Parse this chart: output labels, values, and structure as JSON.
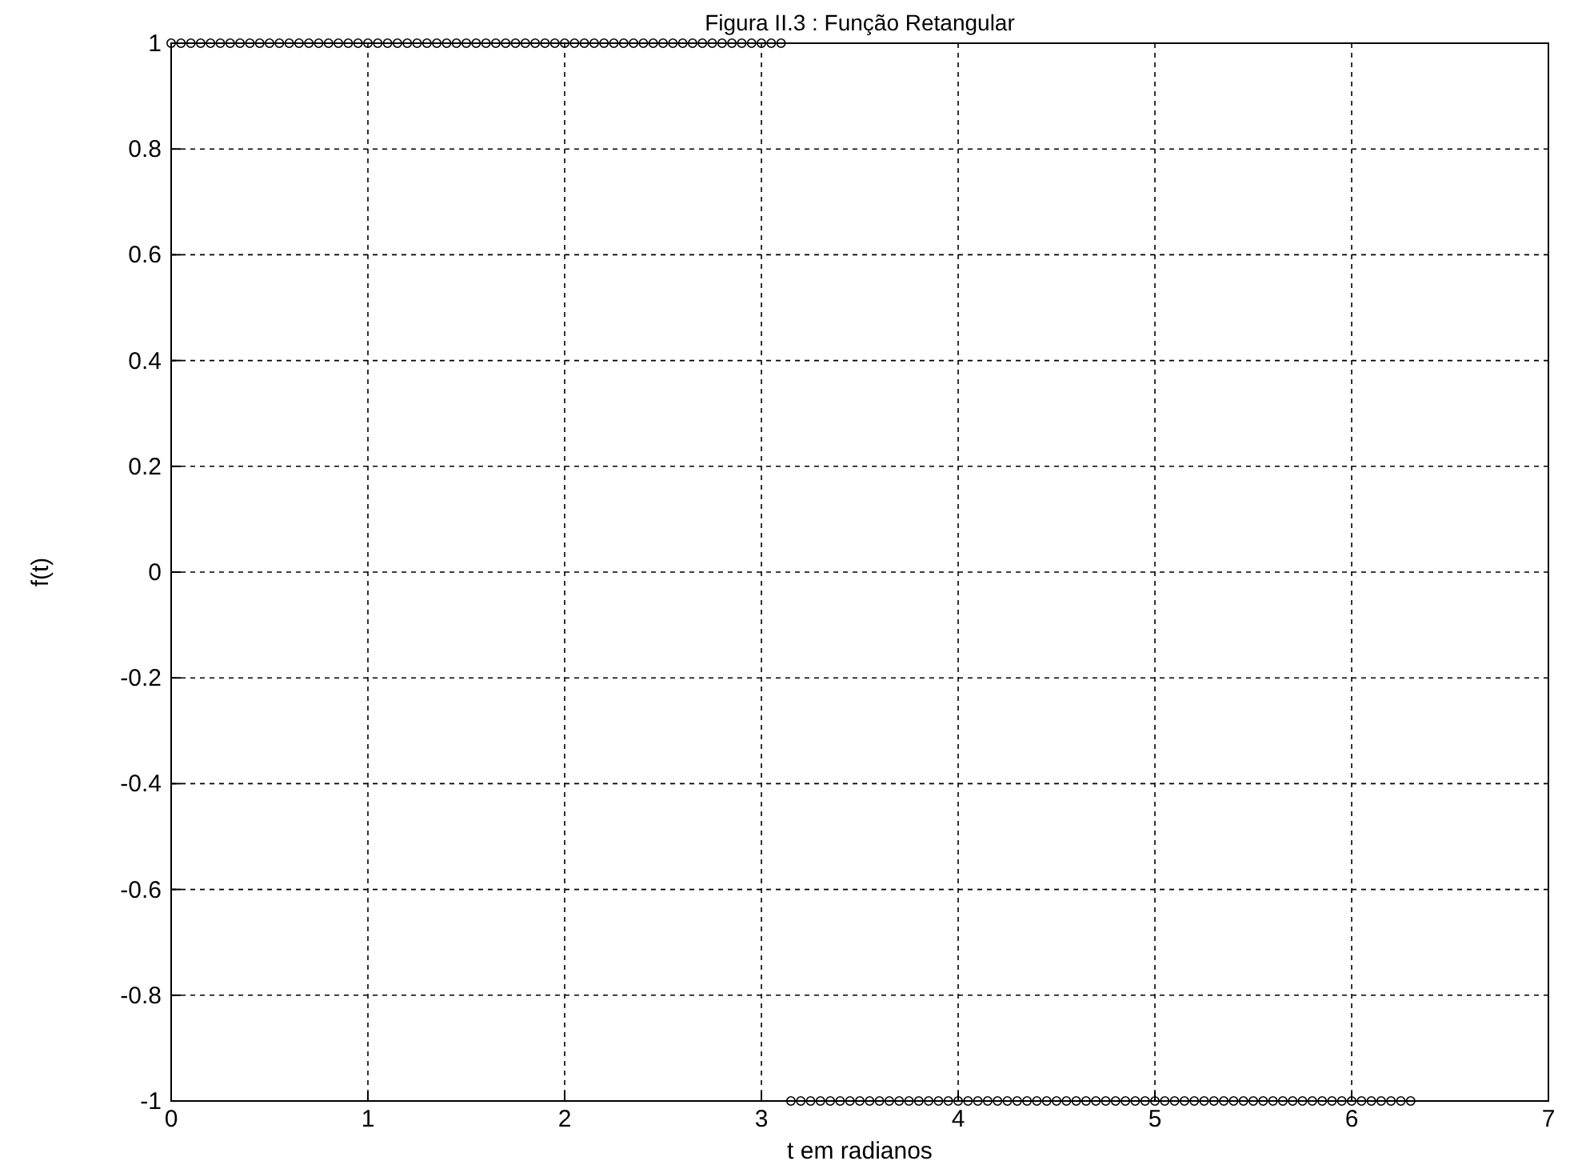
{
  "chart_data": {
    "type": "scatter",
    "title": "Figura II.3 : Função Retangular",
    "xlabel": "t em radianos",
    "ylabel": "f(t)",
    "xlim": [
      0,
      7
    ],
    "xticks": [
      0,
      1,
      2,
      3,
      4,
      5,
      6,
      7
    ],
    "ylim": [
      -1,
      1
    ],
    "yticks": [
      -1,
      -0.8,
      -0.6,
      -0.4,
      -0.2,
      0,
      0.2,
      0.4,
      0.6,
      0.8,
      1
    ],
    "grid": true,
    "marker": "circle",
    "line_style": "dashed",
    "series": [
      {
        "color": "#000000",
        "x": [
          0,
          0.05,
          0.1,
          0.15,
          0.2,
          0.25,
          0.3,
          0.35,
          0.4,
          0.45,
          0.5,
          0.55,
          0.6,
          0.65,
          0.7,
          0.75,
          0.8,
          0.85,
          0.9,
          0.95,
          1,
          1.05,
          1.1,
          1.15,
          1.2,
          1.25,
          1.3,
          1.35,
          1.4,
          1.45,
          1.5,
          1.55,
          1.6,
          1.65,
          1.7,
          1.75,
          1.8,
          1.85,
          1.9,
          1.95,
          2,
          2.05,
          2.1,
          2.15,
          2.2,
          2.25,
          2.3,
          2.35,
          2.4,
          2.45,
          2.5,
          2.55,
          2.6,
          2.65,
          2.7,
          2.75,
          2.8,
          2.85,
          2.9,
          2.95,
          3,
          3.05,
          3.1
        ],
        "values": [
          1,
          1,
          1,
          1,
          1,
          1,
          1,
          1,
          1,
          1,
          1,
          1,
          1,
          1,
          1,
          1,
          1,
          1,
          1,
          1,
          1,
          1,
          1,
          1,
          1,
          1,
          1,
          1,
          1,
          1,
          1,
          1,
          1,
          1,
          1,
          1,
          1,
          1,
          1,
          1,
          1,
          1,
          1,
          1,
          1,
          1,
          1,
          1,
          1,
          1,
          1,
          1,
          1,
          1,
          1,
          1,
          1,
          1,
          1,
          1,
          1,
          1,
          1
        ]
      },
      {
        "color": "#000000",
        "x": [
          3.15,
          3.2,
          3.25,
          3.3,
          3.35,
          3.4,
          3.45,
          3.5,
          3.55,
          3.6,
          3.65,
          3.7,
          3.75,
          3.8,
          3.85,
          3.9,
          3.95,
          4,
          4.05,
          4.1,
          4.15,
          4.2,
          4.25,
          4.3,
          4.35,
          4.4,
          4.45,
          4.5,
          4.55,
          4.6,
          4.65,
          4.7,
          4.75,
          4.8,
          4.85,
          4.9,
          4.95,
          5,
          5.05,
          5.1,
          5.15,
          5.2,
          5.25,
          5.3,
          5.35,
          5.4,
          5.45,
          5.5,
          5.55,
          5.6,
          5.65,
          5.7,
          5.75,
          5.8,
          5.85,
          5.9,
          5.95,
          6,
          6.05,
          6.1,
          6.15,
          6.2,
          6.25,
          6.3
        ],
        "values": [
          -1,
          -1,
          -1,
          -1,
          -1,
          -1,
          -1,
          -1,
          -1,
          -1,
          -1,
          -1,
          -1,
          -1,
          -1,
          -1,
          -1,
          -1,
          -1,
          -1,
          -1,
          -1,
          -1,
          -1,
          -1,
          -1,
          -1,
          -1,
          -1,
          -1,
          -1,
          -1,
          -1,
          -1,
          -1,
          -1,
          -1,
          -1,
          -1,
          -1,
          -1,
          -1,
          -1,
          -1,
          -1,
          -1,
          -1,
          -1,
          -1,
          -1,
          -1,
          -1,
          -1,
          -1,
          -1,
          -1,
          -1,
          -1,
          -1,
          -1,
          -1,
          -1,
          -1,
          -1
        ]
      }
    ]
  }
}
